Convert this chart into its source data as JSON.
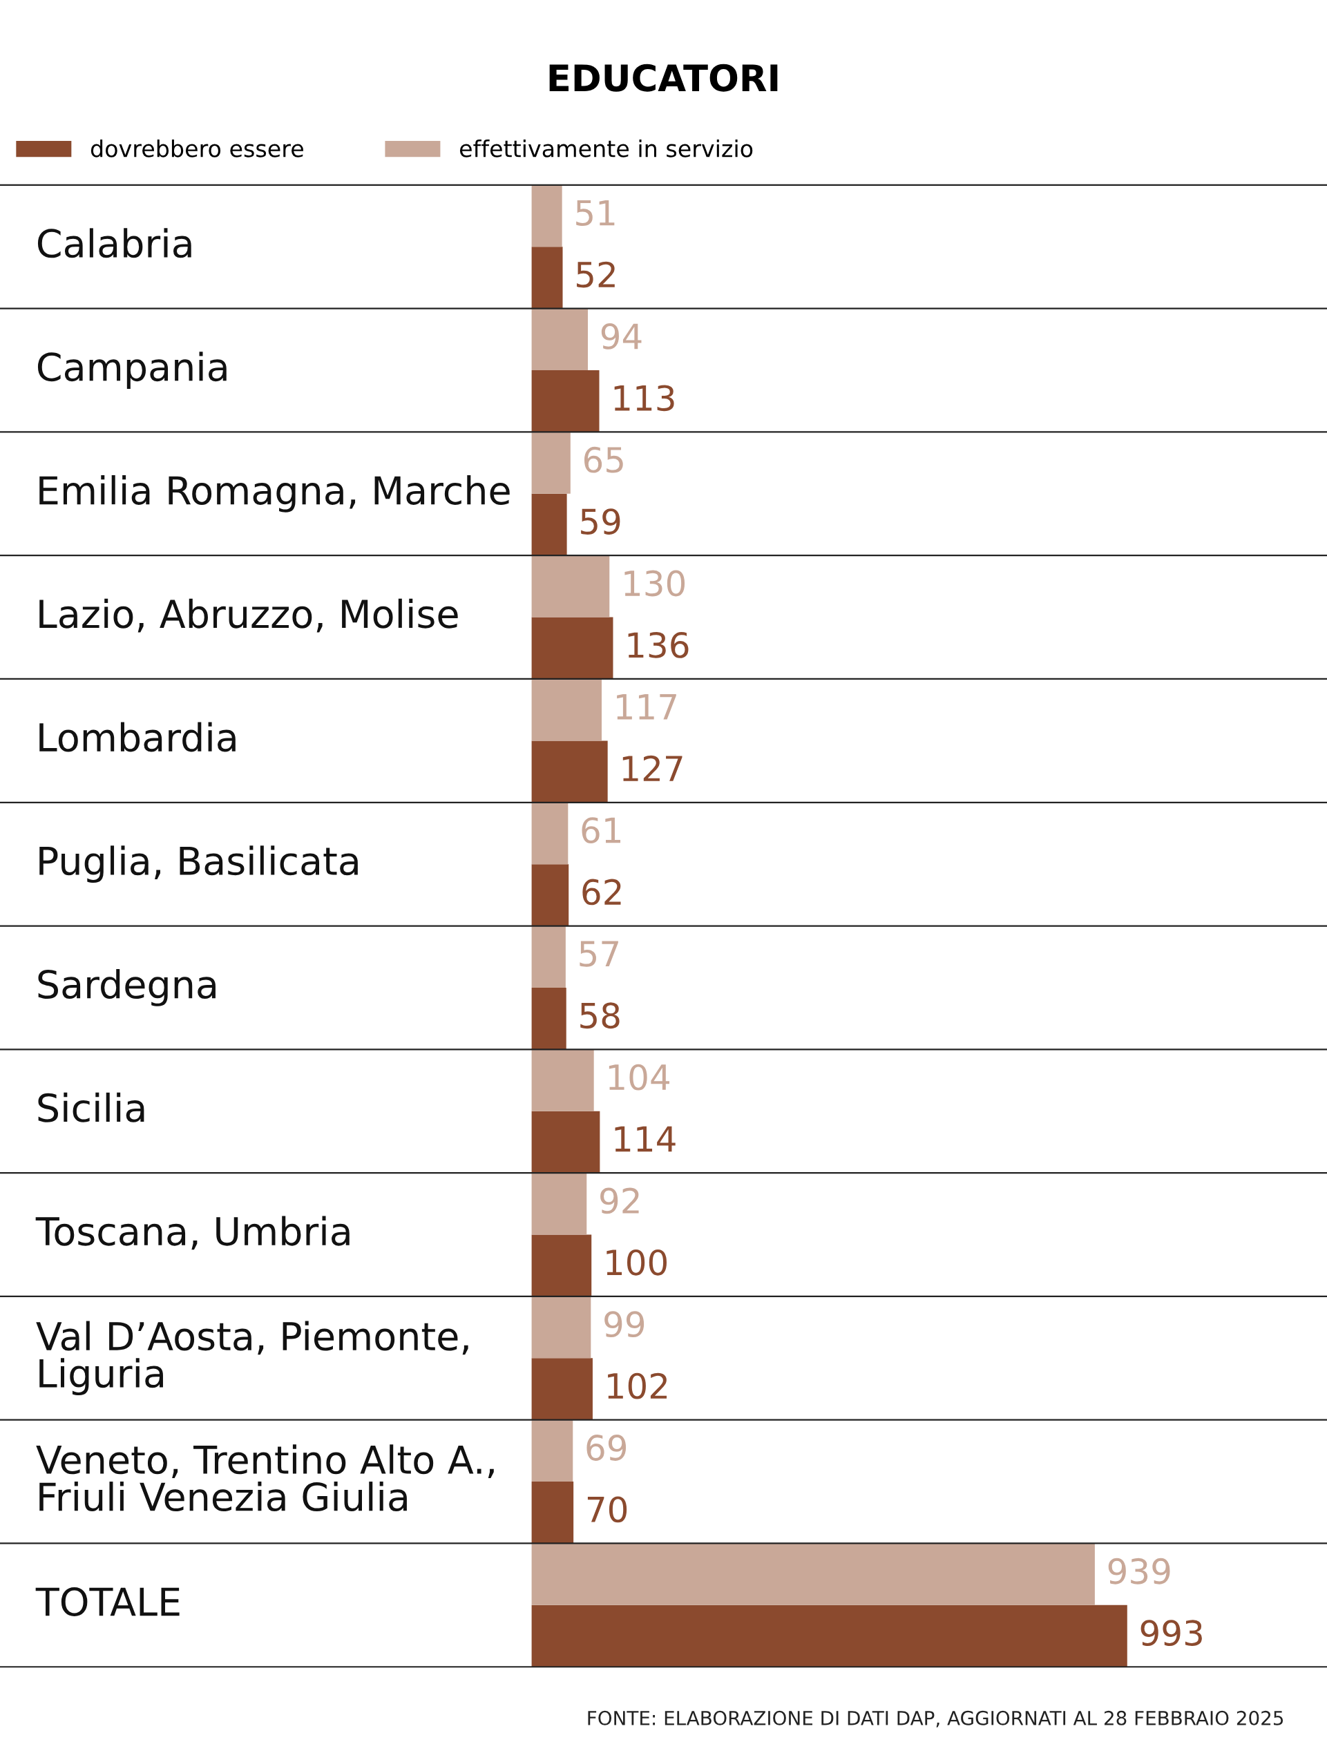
{
  "chart_data": {
    "type": "bar",
    "orientation": "horizontal",
    "title": "EDUCATORI",
    "categories": [
      "Calabria",
      "Campania",
      "Emilia Romagna, Marche",
      "Lazio, Abruzzo, Molise",
      "Lombardia",
      "Puglia, Basilicata",
      "Sardegna",
      "Sicilia",
      "Toscana, Umbria",
      "Val D’Aosta, Piemonte,\nLiguria",
      "Veneto, Trentino Alto A.,\nFriuli Venezia Giulia",
      "TOTALE"
    ],
    "series": [
      {
        "name": "dovrebbero essere",
        "color": "#8b4a2e",
        "values": [
          52,
          113,
          59,
          136,
          127,
          62,
          58,
          114,
          100,
          102,
          70,
          993
        ],
        "value_labels": [
          "52",
          "113",
          "59",
          "136",
          "127",
          "62",
          "58",
          "114",
          "100",
          "102",
          "70",
          "993"
        ]
      },
      {
        "name": "effettivamente in servizio",
        "color": "#c9a898",
        "values": [
          51,
          94,
          65,
          130,
          117,
          61,
          57,
          104,
          92,
          99,
          69,
          939
        ],
        "value_labels": [
          "51",
          "94",
          "65",
          "130",
          "117",
          "61",
          "57",
          "104",
          "92",
          "99",
          "69",
          "939"
        ]
      }
    ],
    "xlim": [
      0,
      1326
    ],
    "legend": "top left",
    "tick_labels": false,
    "annotations": [
      "FONTE: ELABORAZIONE DI DATI DAP, AGGIORNATI AL 28 FEBBRAIO 2025"
    ]
  }
}
